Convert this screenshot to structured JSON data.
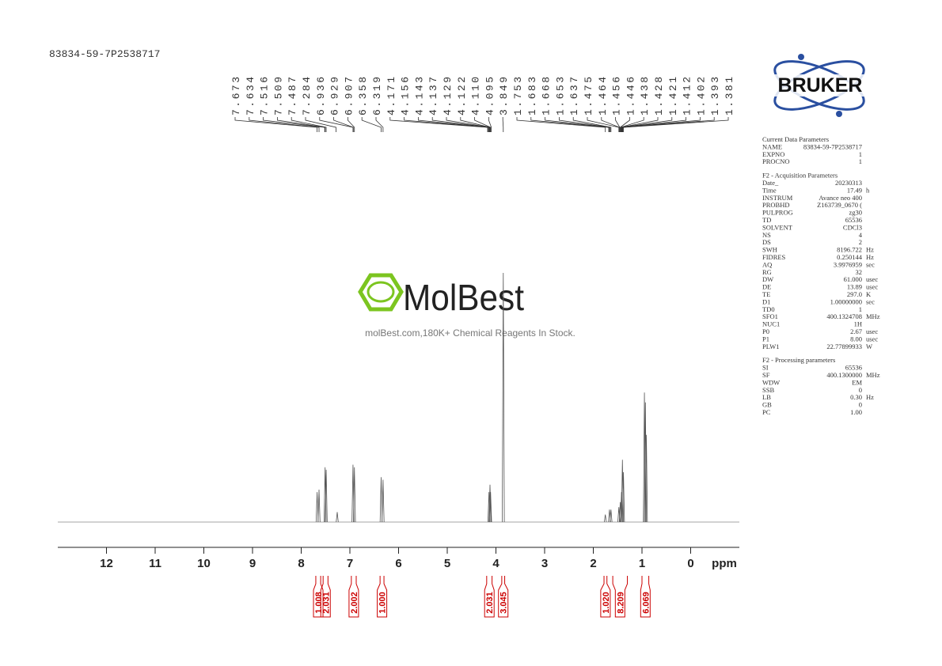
{
  "sample_id": "83834-59-7P2538717",
  "brand": "BRUKER",
  "watermark": {
    "logo": "MolBest",
    "slogan": "molBest.com,180K+ Chemical Reagents In Stock."
  },
  "chart_data": {
    "type": "nmr",
    "x_label": "ppm",
    "xlim": [
      13,
      -1
    ],
    "xticks": [
      12,
      11,
      10,
      9,
      8,
      7,
      6,
      5,
      4,
      3,
      2,
      1,
      0
    ],
    "ylim": [
      0,
      100
    ],
    "peaks": {
      "x": [
        7.673,
        7.634,
        7.509,
        7.487,
        7.26,
        6.936,
        6.907,
        6.358,
        6.319,
        4.143,
        4.122,
        4.11,
        3.849,
        1.753,
        1.668,
        1.637,
        1.475,
        1.446,
        1.421,
        1.402,
        1.381,
        0.95,
        0.93,
        0.91
      ],
      "y": [
        12,
        13,
        22,
        21,
        4,
        23,
        22,
        18,
        17,
        12,
        15,
        12,
        100,
        3,
        5,
        5,
        6,
        8,
        12,
        25,
        20,
        52,
        48,
        35
      ]
    },
    "peak_labels": [
      7.673,
      7.634,
      7.516,
      7.509,
      7.487,
      7.284,
      6.936,
      6.929,
      6.907,
      6.358,
      6.319,
      4.171,
      4.156,
      4.143,
      4.137,
      4.129,
      4.122,
      {
        "value": 4.11,
        "label": "4.110"
      },
      4.095,
      3.849,
      1.753,
      1.683,
      1.668,
      1.653,
      1.637,
      1.475,
      1.464,
      1.456,
      1.446,
      1.438,
      1.428,
      1.421,
      1.412,
      1.402,
      1.393,
      1.381
    ],
    "integrals": {
      "ranges": [
        [
          7.7,
          7.6
        ],
        [
          7.55,
          7.45
        ],
        [
          6.97,
          6.87
        ],
        [
          6.38,
          6.3
        ],
        [
          4.19,
          4.08
        ],
        [
          3.88,
          3.82
        ],
        [
          1.78,
          1.72
        ],
        [
          1.6,
          1.3
        ],
        [
          1.0,
          0.86
        ]
      ],
      "values": [
        1.008,
        2.031,
        2.002,
        {
          "value": 1.0,
          "label": "1.000"
        },
        2.031,
        3.045,
        {
          "value": 1.02,
          "label": "1.020"
        },
        8.209,
        6.069
      ]
    }
  },
  "parameters": [
    {
      "title": "Current Data Parameters",
      "rows": [
        [
          "NAME",
          "83834-59-7P2538717"
        ],
        [
          "EXPNO",
          "1"
        ],
        [
          "PROCNO",
          "1"
        ]
      ]
    },
    {
      "title": "F2 - Acquisition Parameters",
      "rows": [
        [
          "Date_",
          "20230313"
        ],
        [
          "Time",
          "17.49",
          "h"
        ],
        [
          "INSTRUM",
          "Avance neo 400"
        ],
        [
          "PROBHD",
          "Z163739_0670 ("
        ],
        [
          "PULPROG",
          "zg30"
        ],
        [
          "TD",
          "65536"
        ],
        [
          "SOLVENT",
          "CDCl3"
        ],
        [
          "NS",
          "4"
        ],
        [
          "DS",
          "2"
        ],
        [
          "SWH",
          "8196.722",
          "Hz"
        ],
        [
          "FIDRES",
          "0.250144",
          "Hz"
        ],
        [
          "AQ",
          "3.9976959",
          "sec"
        ],
        [
          "RG",
          "32"
        ],
        [
          "DW",
          "61.000",
          "usec"
        ],
        [
          "DE",
          "13.89",
          "usec"
        ],
        [
          "TE",
          "297.0",
          "K"
        ],
        [
          "D1",
          "1.00000000",
          "sec"
        ],
        [
          "TD0",
          "1"
        ],
        [
          "SFO1",
          "400.1324708",
          "MHz"
        ],
        [
          "NUC1",
          "1H"
        ],
        [
          "P0",
          "2.67",
          "usec"
        ],
        [
          "P1",
          "8.00",
          "usec"
        ],
        [
          "PLW1",
          "22.77899933",
          "W"
        ]
      ]
    },
    {
      "title": "F2 - Processing parameters",
      "rows": [
        [
          "SI",
          "65536"
        ],
        [
          "SF",
          "400.1300000",
          "MHz"
        ],
        [
          "WDW",
          "EM"
        ],
        [
          "SSB",
          "0"
        ],
        [
          "LB",
          "0.30",
          "Hz"
        ],
        [
          "GB",
          "0"
        ],
        [
          "PC",
          "1.00"
        ]
      ]
    }
  ]
}
